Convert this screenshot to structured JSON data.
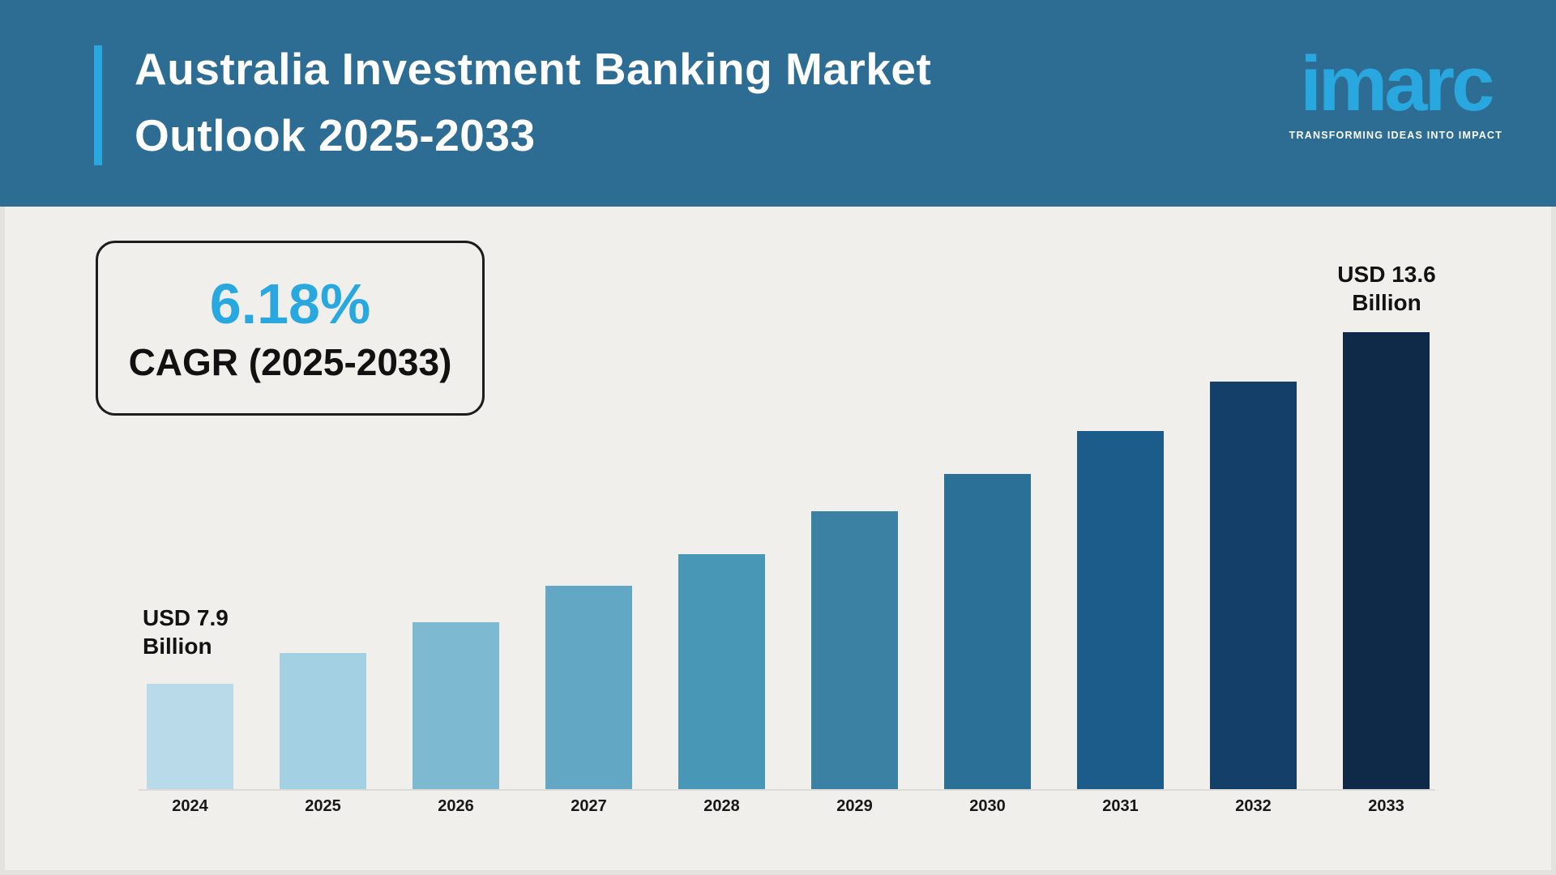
{
  "header": {
    "title_line1": "Australia Investment Banking Market",
    "title_line2": "Outlook 2025-2033",
    "background_color": "#2d6d94",
    "accent_color": "#29a8e0",
    "logo": {
      "text": "imarc",
      "tagline": "TRANSFORMING IDEAS INTO IMPACT",
      "color": "#29a8e0"
    }
  },
  "cagr_box": {
    "value": "6.18%",
    "label": "CAGR (2025-2033)",
    "value_color": "#29a8e0"
  },
  "chart_data": {
    "type": "bar",
    "title": "Australia Investment Banking Market Outlook 2025-2033",
    "unit": "USD Billion",
    "categories": [
      "2024",
      "2025",
      "2026",
      "2027",
      "2028",
      "2029",
      "2030",
      "2031",
      "2032",
      "2033"
    ],
    "values": [
      7.9,
      8.4,
      8.9,
      9.5,
      10.0,
      10.7,
      11.3,
      12.0,
      12.8,
      13.6
    ],
    "bar_colors": [
      "#b9dbe9",
      "#a3d0e2",
      "#7db9d1",
      "#62a8c4",
      "#4897b6",
      "#3a81a4",
      "#2a7097",
      "#1b5c8b",
      "#143f69",
      "#0e2a48"
    ],
    "annotations": {
      "first": "USD 7.9 Billion",
      "last": "USD 13.6 Billion"
    },
    "cagr": "6.18%",
    "xlabel": "",
    "ylabel": "",
    "ylim": [
      6.2,
      14.6
    ],
    "grid": false,
    "legend": false
  }
}
